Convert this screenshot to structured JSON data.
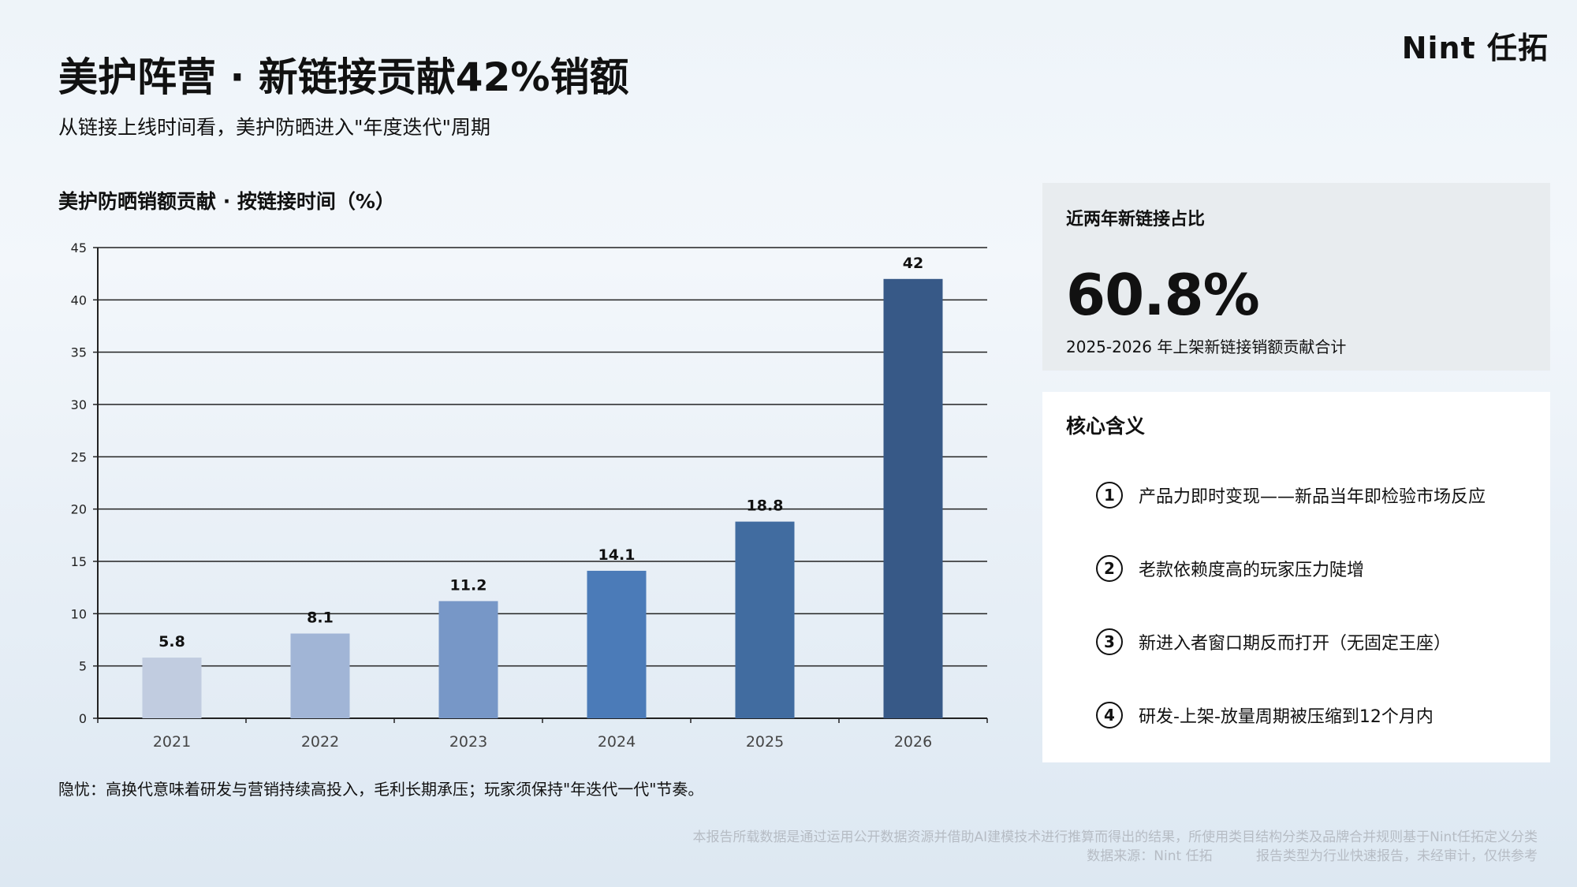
{
  "logo": "Nint 任拓",
  "title": "美护阵营 · 新链接贡献42%销额",
  "subtitle": "从链接上线时间看，美护防晒进入\"年度迭代\"周期",
  "chart_title": "美护防晒销额贡献 · 按链接时间（%）",
  "chart_note": "隐忧：高换代意味着研发与营销持续高投入，毛利长期承压；玩家须保持\"年迭代一代\"节奏。",
  "kpi": {
    "label": "近两年新链接占比",
    "value": "60.8%",
    "desc": "2025-2026 年上架新链接销额贡献合计"
  },
  "core": {
    "label": "核心含义",
    "points": [
      {
        "num": "1",
        "text": "产品力即时变现——新品当年即检验市场反应"
      },
      {
        "num": "2",
        "text": "老款依赖度高的玩家压力陡增"
      },
      {
        "num": "3",
        "text": "新进入者窗口期反而打开（无固定王座）"
      },
      {
        "num": "4",
        "text": "研发-上架-放量周期被压缩到12个月内"
      }
    ]
  },
  "footer": {
    "line1": "本报告所载数据是通过运用公开数据资源并借助AI建模技术进行推算而得出的结果，所使用类目结构分类及品牌合并规则基于Nint任拓定义分类",
    "source": "数据来源：Nint 任拓",
    "disclaimer": "报告类型为行业快速报告，未经审计，仅供参考"
  },
  "chart_data": {
    "type": "bar",
    "categories": [
      "2021",
      "2022",
      "2023",
      "2024",
      "2025",
      "2026"
    ],
    "values": [
      5.8,
      8.1,
      11.2,
      14.1,
      18.8,
      42
    ],
    "ylim": [
      0,
      45
    ],
    "yticks": [
      0,
      5,
      10,
      15,
      20,
      25,
      30,
      35,
      40,
      45
    ],
    "grid": true,
    "colors": [
      "#c1cce0",
      "#a1b5d6",
      "#7797c7",
      "#4b7bb8",
      "#416ca0",
      "#375987"
    ]
  }
}
